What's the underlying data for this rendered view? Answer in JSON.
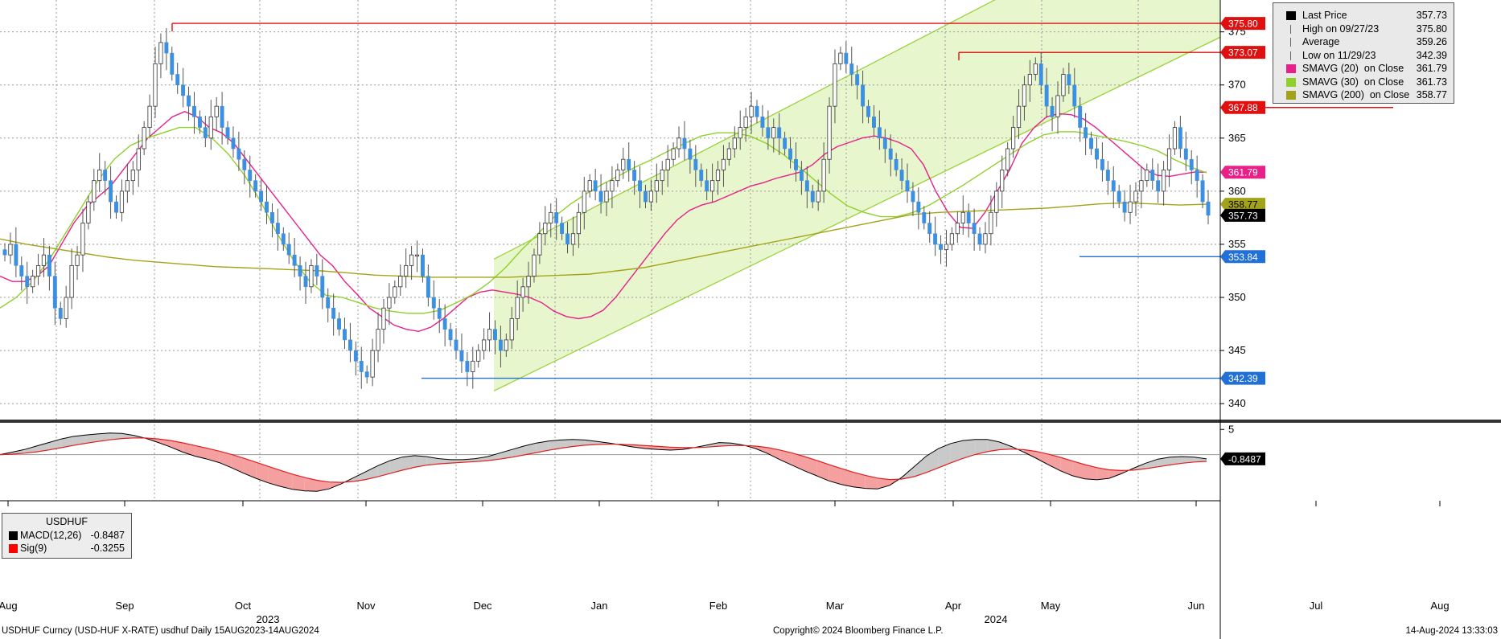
{
  "footer": {
    "left": "USDHUF Curncy (USD-HUF X-RATE) usdhuf  Daily 15AUG2023-14AUG2024",
    "center": "Copyright© 2024 Bloomberg Finance L.P.",
    "right": "14-Aug-2024 13:33:03"
  },
  "legend": {
    "items": [
      {
        "label": "Last Price",
        "value": "357.73",
        "color": "#000000",
        "marker": "square"
      },
      {
        "label": "High on 09/27/23",
        "value": "375.80",
        "color": "#666666",
        "marker": "high"
      },
      {
        "label": "Average",
        "value": "359.26",
        "color": "#666666",
        "marker": "avg"
      },
      {
        "label": "Low on 11/29/23",
        "value": "342.39",
        "color": "#666666",
        "marker": "low"
      },
      {
        "label": "SMAVG (20)  on Close",
        "value": "361.79",
        "color": "#e8208a",
        "marker": "square"
      },
      {
        "label": "SMAVG (30)  on Close",
        "value": "361.73",
        "color": "#8fd12a",
        "marker": "square"
      },
      {
        "label": "SMAVG (200)  on Close",
        "value": "358.77",
        "color": "#a3a31a",
        "marker": "square"
      }
    ]
  },
  "macd_legend": {
    "title": "USDHUF",
    "items": [
      {
        "label": "MACD(12,26)",
        "value": "-0.8487",
        "color": "#000000"
      },
      {
        "label": "Sig(9)",
        "value": "-0.3255",
        "color": "#ff0000"
      }
    ]
  },
  "chart_data": [
    {
      "type": "candlestick",
      "title": "USDHUF Curncy (USD-HUF X-RATE) usdhuf  Daily 15AUG2023-14AUG2024",
      "x_tick_labels": [
        "Aug",
        "Sep",
        "Oct",
        "Nov",
        "Dec",
        "Jan",
        "Feb",
        "Mar",
        "Apr",
        "May",
        "Jun",
        "Jul",
        "Aug"
      ],
      "year_labels": [
        "2023",
        "2024"
      ],
      "y_ticks": [
        340,
        345,
        350,
        355,
        360,
        365,
        370,
        375
      ],
      "ylim": [
        338.5,
        378
      ],
      "grid": true,
      "legend_position": "top-right",
      "colors": {
        "up": "#3d8fe0",
        "down": "#444444",
        "sma20": "#e8208a",
        "sma30": "#8fd12a",
        "sma200": "#a3a31a",
        "channel": "#e6f5c8"
      },
      "levels": [
        {
          "label": "375.80",
          "value": 375.8,
          "color": "#e01010"
        },
        {
          "label": "373.07",
          "value": 373.07,
          "color": "#e01010"
        },
        {
          "label": "367.88",
          "value": 367.88,
          "color": "#e01010"
        },
        {
          "label": "353.84",
          "value": 353.84,
          "color": "#2070d8"
        },
        {
          "label": "342.39",
          "value": 342.39,
          "color": "#2070d8"
        }
      ],
      "value_tags": [
        {
          "label": "361.79",
          "value": 361.79,
          "color": "#e8208a"
        },
        {
          "label": "358.77",
          "value": 358.77,
          "color": "#a3a31a"
        },
        {
          "label": "357.73",
          "value": 357.73,
          "color": "#000000"
        }
      ],
      "close": [
        354,
        355,
        353,
        352,
        351,
        352,
        353,
        354,
        352,
        349,
        348,
        350,
        353,
        354,
        357,
        359,
        361,
        362,
        361,
        359,
        358,
        360,
        361,
        362,
        364,
        366,
        368,
        372,
        374,
        373,
        371,
        370,
        369,
        368,
        367,
        366,
        365,
        367,
        368,
        366,
        365,
        364,
        363,
        362,
        361,
        360,
        359,
        358,
        357,
        356,
        355,
        354,
        353,
        352,
        351,
        353,
        352,
        350,
        349,
        348,
        347,
        346,
        345,
        344,
        343,
        342.5,
        345,
        347,
        349,
        350,
        351,
        352,
        353,
        354,
        354,
        352,
        350,
        349,
        348,
        347,
        346,
        345,
        344,
        343,
        344,
        345,
        346,
        347,
        346,
        345,
        346,
        348,
        350,
        351,
        352,
        354,
        356,
        357,
        358,
        357,
        356,
        355,
        356,
        358,
        360,
        361,
        360,
        359,
        360,
        361,
        362,
        363,
        362,
        361,
        360,
        359,
        360,
        361,
        362,
        363,
        364,
        365,
        364,
        363,
        362,
        361,
        360,
        361,
        362,
        363,
        364,
        365,
        366,
        367,
        368,
        367,
        366,
        365,
        366,
        365,
        364,
        363,
        362,
        361,
        360,
        359,
        360,
        363,
        368,
        372,
        373,
        372,
        371,
        370,
        368,
        367,
        366,
        365,
        364,
        363,
        362,
        361,
        360,
        359,
        358,
        357,
        356,
        355,
        354.5,
        355,
        356,
        357,
        358,
        357,
        356,
        355,
        356,
        358,
        360,
        362,
        364,
        366,
        368,
        370,
        371,
        372,
        370,
        368,
        367,
        369,
        371,
        370,
        368,
        366,
        365,
        364,
        363,
        362,
        361,
        360,
        359,
        358,
        359,
        360,
        361,
        362,
        361,
        360,
        362,
        364,
        366,
        364,
        363,
        362,
        361,
        359,
        357.73
      ],
      "sma20": [
        352,
        351.5,
        351.5,
        352,
        353,
        355,
        357,
        358.5,
        359.5,
        360.5,
        362,
        363.5,
        365,
        366,
        367,
        367.5,
        367,
        366,
        365.5,
        364.5,
        363,
        361.5,
        360,
        358.5,
        357,
        355.5,
        354,
        353,
        351.5,
        350.3,
        349,
        348.2,
        347.4,
        347,
        346.8,
        347.2,
        348,
        349,
        350,
        350.5,
        350.7,
        350.5,
        350.3,
        350,
        349.5,
        348.7,
        348.2,
        348,
        348.2,
        348.8,
        350,
        351.5,
        353,
        354.5,
        356,
        357.3,
        358.2,
        358.7,
        359,
        359.5,
        360,
        360.5,
        360.8,
        361.2,
        361.5,
        361.8,
        362.5,
        363.5,
        364.2,
        364.6,
        365,
        365.2,
        365,
        364.6,
        364,
        362.5,
        360,
        358,
        356.6,
        356.5,
        358,
        360,
        362,
        364.5,
        366,
        367,
        367.3,
        367.2,
        366.8,
        366,
        365,
        364,
        363,
        362,
        361.5,
        361.4,
        361.6,
        361.8,
        361.79
      ],
      "sma30": [
        349,
        350,
        351.5,
        353.5,
        356,
        358.5,
        361,
        363,
        364.3,
        365,
        365.5,
        366,
        366,
        365,
        363.5,
        361.5,
        359,
        356,
        353.5,
        351.5,
        350.2,
        350,
        349.5,
        349,
        348.7,
        348.5,
        348.5,
        348.8,
        349.5,
        350.3,
        351.4,
        352.8,
        354.5,
        356,
        357.6,
        358.8,
        359.8,
        360.7,
        361.5,
        362.3,
        363,
        363.8,
        364.5,
        365.2,
        365.5,
        365.5,
        365.2,
        364.5,
        363.5,
        362.3,
        361,
        359.7,
        358.6,
        358,
        357.6,
        357.6,
        358,
        358.7,
        359.6,
        360.5,
        361.5,
        362.5,
        363.5,
        364.5,
        365.3,
        365.6,
        365.6,
        365.3,
        365,
        364.7,
        364.3,
        363.8,
        363,
        362.3,
        361.73
      ],
      "sma200": [
        355.5,
        355,
        354.6,
        354.2,
        353.8,
        353.5,
        353.3,
        353.1,
        352.9,
        352.8,
        352.7,
        352.6,
        352.5,
        352.3,
        352.1,
        352,
        351.9,
        351.9,
        351.9,
        351.9,
        352,
        352.1,
        352.2,
        352.5,
        352.8,
        353.3,
        353.8,
        354.3,
        354.8,
        355.3,
        355.8,
        356.3,
        356.8,
        357.3,
        357.8,
        358,
        358.1,
        358.2,
        358.3,
        358.4,
        358.6,
        358.8,
        358.9,
        358.8,
        358.7,
        358.77
      ],
      "macd_panel": {
        "ylim": [
          -9,
          6
        ],
        "y_ticks": [
          5
        ],
        "tag": {
          "label": "-0.8487",
          "value": -0.8487
        },
        "macd": [
          0,
          0.5,
          1,
          1.7,
          2.4,
          3.1,
          3.6,
          3.9,
          4.1,
          4.3,
          4.2,
          3.8,
          3.2,
          2.4,
          1.5,
          0.5,
          -0.3,
          -0.9,
          -1.6,
          -2.6,
          -3.7,
          -4.7,
          -5.6,
          -6.3,
          -6.9,
          -7.2,
          -7.3,
          -6.8,
          -5.8,
          -4.6,
          -3.4,
          -2.2,
          -1.2,
          -0.5,
          -0.2,
          -0.4,
          -0.8,
          -1.0,
          -1.0,
          -0.8,
          -0.4,
          0.3,
          1,
          1.7,
          2.3,
          2.7,
          2.9,
          3,
          2.9,
          2.6,
          2.3,
          1.9,
          1.5,
          1.2,
          1,
          0.9,
          1,
          1.4,
          1.9,
          2.4,
          2.3,
          1.9,
          1.2,
          0.2,
          -1,
          -2.1,
          -3.2,
          -4.2,
          -5.2,
          -5.9,
          -6.4,
          -6.7,
          -6.8,
          -6.1,
          -4.5,
          -2.4,
          -0.3,
          1.2,
          2.2,
          2.8,
          3,
          3,
          2.5,
          1.6,
          0.5,
          -0.7,
          -2,
          -3.2,
          -4.2,
          -4.8,
          -5,
          -4.7,
          -3.8,
          -2.7,
          -1.7,
          -0.9,
          -0.5,
          -0.4,
          -0.5,
          -0.8487
        ]
      }
    }
  ]
}
